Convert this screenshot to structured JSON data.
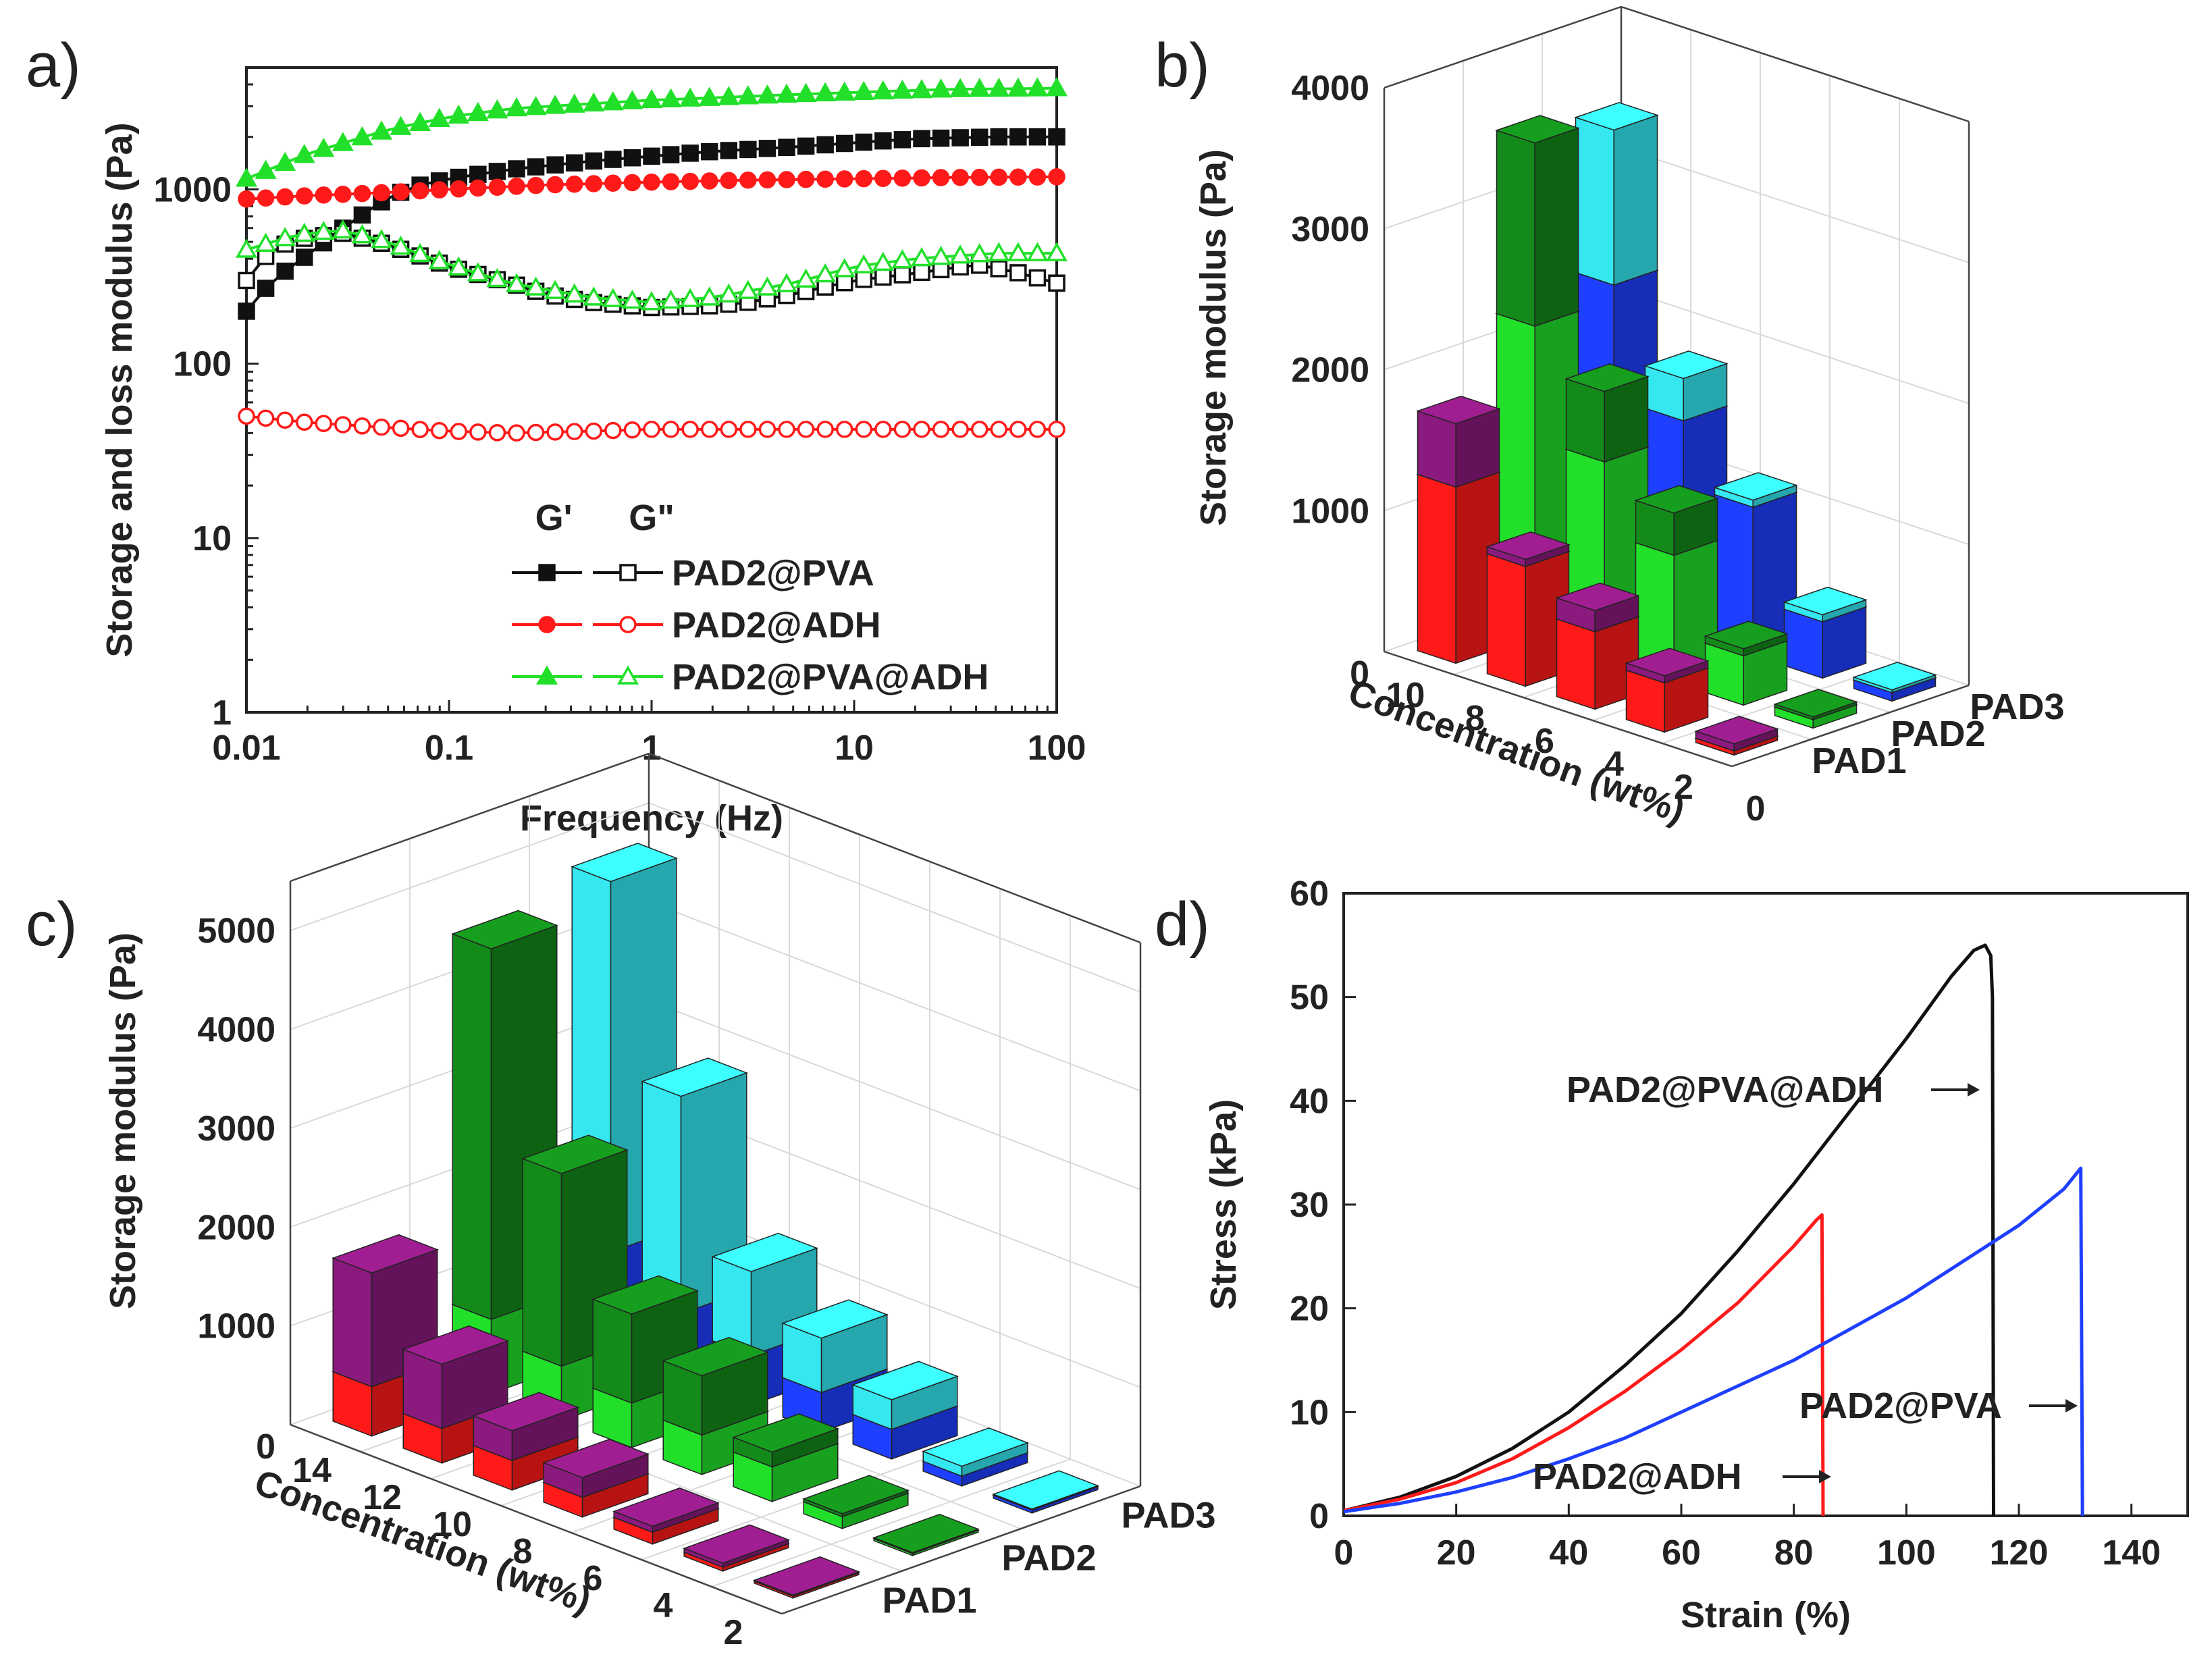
{
  "panels": {
    "a": {
      "label": "a)"
    },
    "b": {
      "label": "b)"
    },
    "c": {
      "label": "c)"
    },
    "d": {
      "label": "d)"
    }
  },
  "colors": {
    "black": "#111111",
    "red": "#ff1a1a",
    "green": "#22e02a",
    "dark_green": "#138a1a",
    "blue": "#1f3fff",
    "cyan": "#35e8f0",
    "purple": "#8b1a7e",
    "grid": "#cfcfcf"
  },
  "chart_data": [
    {
      "id": "a",
      "type": "line",
      "xscale": "log",
      "yscale": "log",
      "xlabel": "Frequency (Hz)",
      "ylabel": "Storage and loss modulus (Pa)",
      "xlim": [
        0.01,
        100
      ],
      "ylim": [
        1,
        5000
      ],
      "xticks": [
        {
          "v": 0.01,
          "t": "0.01"
        },
        {
          "v": 0.1,
          "t": "0.1"
        },
        {
          "v": 1,
          "t": "1"
        },
        {
          "v": 10,
          "t": "10"
        },
        {
          "v": 100,
          "t": "100"
        }
      ],
      "yticks": [
        {
          "v": 1,
          "t": "1"
        },
        {
          "v": 10,
          "t": "10"
        },
        {
          "v": 100,
          "t": "100"
        },
        {
          "v": 1000,
          "t": "1000"
        }
      ],
      "legend_header": [
        "G'",
        "G\""
      ],
      "series": [
        {
          "name": "PAD2@PVA",
          "kind": "G'",
          "color": "#111111",
          "marker": "square",
          "filled": true,
          "points": [
            [
              0.01,
              200
            ],
            [
              0.012,
              260
            ],
            [
              0.015,
              330
            ],
            [
              0.02,
              420
            ],
            [
              0.03,
              600
            ],
            [
              0.05,
              900
            ],
            [
              0.07,
              1050
            ],
            [
              0.1,
              1150
            ],
            [
              0.2,
              1300
            ],
            [
              0.5,
              1450
            ],
            [
              1,
              1550
            ],
            [
              2,
              1650
            ],
            [
              5,
              1750
            ],
            [
              10,
              1850
            ],
            [
              20,
              1950
            ],
            [
              50,
              2000
            ],
            [
              100,
              2000
            ]
          ]
        },
        {
          "name": "PAD2@PVA",
          "kind": "G\"",
          "color": "#111111",
          "marker": "square",
          "filled": false,
          "points": [
            [
              0.01,
              300
            ],
            [
              0.012,
              400
            ],
            [
              0.015,
              480
            ],
            [
              0.02,
              530
            ],
            [
              0.03,
              560
            ],
            [
              0.05,
              480
            ],
            [
              0.07,
              420
            ],
            [
              0.1,
              360
            ],
            [
              0.2,
              290
            ],
            [
              0.3,
              250
            ],
            [
              0.5,
              225
            ],
            [
              1,
              210
            ],
            [
              2,
              215
            ],
            [
              3,
              225
            ],
            [
              5,
              250
            ],
            [
              10,
              300
            ],
            [
              20,
              330
            ],
            [
              40,
              370
            ],
            [
              60,
              340
            ],
            [
              100,
              290
            ]
          ]
        },
        {
          "name": "PAD2@ADH",
          "kind": "G'",
          "color": "#ff1a1a",
          "marker": "circle",
          "filled": true,
          "points": [
            [
              0.01,
              880
            ],
            [
              0.02,
              920
            ],
            [
              0.05,
              960
            ],
            [
              0.1,
              1000
            ],
            [
              0.3,
              1060
            ],
            [
              1,
              1100
            ],
            [
              3,
              1130
            ],
            [
              10,
              1150
            ],
            [
              30,
              1170
            ],
            [
              100,
              1180
            ]
          ]
        },
        {
          "name": "PAD2@ADH",
          "kind": "G\"",
          "color": "#ff1a1a",
          "marker": "circle",
          "filled": false,
          "points": [
            [
              0.01,
              50
            ],
            [
              0.02,
              46
            ],
            [
              0.05,
              43
            ],
            [
              0.1,
              41
            ],
            [
              0.2,
              40
            ],
            [
              0.5,
              41
            ],
            [
              1,
              42
            ],
            [
              3,
              42
            ],
            [
              10,
              42
            ],
            [
              30,
              42
            ],
            [
              100,
              42
            ]
          ]
        },
        {
          "name": "PAD2@PVA@ADH",
          "kind": "G'",
          "color": "#22e02a",
          "marker": "triangle",
          "filled": true,
          "points": [
            [
              0.01,
              1150
            ],
            [
              0.02,
              1600
            ],
            [
              0.05,
              2200
            ],
            [
              0.1,
              2600
            ],
            [
              0.2,
              2900
            ],
            [
              0.5,
              3100
            ],
            [
              1,
              3250
            ],
            [
              2,
              3350
            ],
            [
              5,
              3500
            ],
            [
              10,
              3600
            ],
            [
              30,
              3750
            ],
            [
              100,
              3800
            ]
          ]
        },
        {
          "name": "PAD2@PVA@ADH",
          "kind": "G\"",
          "color": "#22e02a",
          "marker": "triangle",
          "filled": false,
          "points": [
            [
              0.01,
              450
            ],
            [
              0.015,
              520
            ],
            [
              0.02,
              560
            ],
            [
              0.03,
              580
            ],
            [
              0.05,
              500
            ],
            [
              0.07,
              430
            ],
            [
              0.1,
              370
            ],
            [
              0.2,
              290
            ],
            [
              0.5,
              240
            ],
            [
              1,
              225
            ],
            [
              2,
              240
            ],
            [
              5,
              290
            ],
            [
              10,
              360
            ],
            [
              20,
              400
            ],
            [
              50,
              430
            ],
            [
              100,
              430
            ]
          ]
        }
      ]
    },
    {
      "id": "b",
      "type": "bar3d",
      "zlabel": "Storage modulus (Pa)",
      "xlabel": "Concentration (wt%)",
      "zmax": 4000,
      "zticks": [
        {
          "v": 1000,
          "t": "1000"
        },
        {
          "v": 2000,
          "t": "2000"
        },
        {
          "v": 3000,
          "t": "3000"
        },
        {
          "v": 4000,
          "t": "4000"
        }
      ],
      "xticks": [
        {
          "v": 10,
          "t": "10"
        },
        {
          "v": 8,
          "t": "8"
        },
        {
          "v": 6,
          "t": "6"
        },
        {
          "v": 4,
          "t": "4"
        },
        {
          "v": 2,
          "t": "2"
        }
      ],
      "zero_labels": [
        "0",
        "0"
      ],
      "rows": [
        "PAD1",
        "PAD2",
        "PAD3"
      ],
      "concentrations": [
        10,
        8,
        6,
        4,
        2
      ],
      "series": [
        {
          "name": "PAD1",
          "color_low": "#ff1a1a",
          "color_high": "#8b1a7e",
          "low": [
            1250,
            850,
            550,
            350,
            30
          ],
          "total": [
            1700,
            900,
            700,
            400,
            80
          ]
        },
        {
          "name": "PAD2",
          "color_low": "#22e02a",
          "color_high": "#138a1a",
          "low": [
            2200,
            1400,
            900,
            350,
            60
          ],
          "total": [
            3500,
            1900,
            1200,
            400,
            80
          ]
        },
        {
          "name": "PAD3",
          "color_low": "#1f3fff",
          "color_high": "#35e8f0",
          "low": [
            2300,
            1500,
            1050,
            400,
            60
          ],
          "total": [
            3400,
            1800,
            1100,
            450,
            80
          ]
        }
      ]
    },
    {
      "id": "c",
      "type": "bar3d",
      "zlabel": "Storage modulus (Pa)",
      "xlabel": "Concentration (wt%)",
      "zmax": 5500,
      "zticks": [
        {
          "v": 1000,
          "t": "1000"
        },
        {
          "v": 2000,
          "t": "2000"
        },
        {
          "v": 3000,
          "t": "3000"
        },
        {
          "v": 4000,
          "t": "4000"
        },
        {
          "v": 5000,
          "t": "5000"
        }
      ],
      "xticks": [
        {
          "v": 14,
          "t": "14"
        },
        {
          "v": 12,
          "t": "12"
        },
        {
          "v": 10,
          "t": "10"
        },
        {
          "v": 8,
          "t": "8"
        },
        {
          "v": 6,
          "t": "6"
        },
        {
          "v": 4,
          "t": "4"
        },
        {
          "v": 2,
          "t": "2"
        }
      ],
      "zero_labels": [
        "0"
      ],
      "rows": [
        "PAD1",
        "PAD2",
        "PAD3"
      ],
      "concentrations": [
        14,
        12,
        10,
        8,
        6,
        4,
        2
      ],
      "series": [
        {
          "name": "PAD1",
          "color_low": "#ff1a1a",
          "color_high": "#8b1a7e",
          "low": [
            500,
            350,
            300,
            200,
            120,
            40,
            20
          ],
          "total": [
            1650,
            1000,
            600,
            400,
            180,
            80,
            30
          ]
        },
        {
          "name": "PAD2",
          "color_low": "#22e02a",
          "color_high": "#138a1a",
          "low": [
            750,
            550,
            450,
            400,
            350,
            120,
            20
          ],
          "total": [
            4500,
            2500,
            1350,
            1000,
            500,
            150,
            30
          ]
        },
        {
          "name": "PAD3",
          "color_low": "#1f3fff",
          "color_high": "#35e8f0",
          "low": [
            1000,
            650,
            500,
            400,
            300,
            100,
            30
          ],
          "total": [
            4750,
            2850,
            1350,
            950,
            600,
            200,
            40
          ]
        }
      ]
    },
    {
      "id": "d",
      "type": "line",
      "xlabel": "Strain (%)",
      "ylabel": "Stress (kPa)",
      "xlim": [
        0,
        150
      ],
      "ylim": [
        0,
        60
      ],
      "xticks": [
        {
          "v": 0,
          "t": "0"
        },
        {
          "v": 20,
          "t": "20"
        },
        {
          "v": 40,
          "t": "40"
        },
        {
          "v": 60,
          "t": "60"
        },
        {
          "v": 80,
          "t": "80"
        },
        {
          "v": 100,
          "t": "100"
        },
        {
          "v": 120,
          "t": "120"
        },
        {
          "v": 140,
          "t": "140"
        }
      ],
      "yticks": [
        {
          "v": 0,
          "t": "0"
        },
        {
          "v": 10,
          "t": "10"
        },
        {
          "v": 20,
          "t": "20"
        },
        {
          "v": 30,
          "t": "30"
        },
        {
          "v": 40,
          "t": "40"
        },
        {
          "v": 50,
          "t": "50"
        },
        {
          "v": 60,
          "t": "60"
        }
      ],
      "series": [
        {
          "name": "PAD2@PVA@ADH",
          "color": "#111111",
          "label": "PAD2@PVA@ADH",
          "points": [
            [
              0,
              0.5
            ],
            [
              10,
              1.8
            ],
            [
              20,
              3.8
            ],
            [
              30,
              6.5
            ],
            [
              40,
              10
            ],
            [
              50,
              14.5
            ],
            [
              60,
              19.5
            ],
            [
              70,
              25.5
            ],
            [
              80,
              32
            ],
            [
              90,
              39
            ],
            [
              100,
              46
            ],
            [
              108,
              52
            ],
            [
              112,
              54.5
            ],
            [
              114,
              55
            ],
            [
              115,
              54
            ],
            [
              115.3,
              50
            ],
            [
              115.5,
              0
            ]
          ]
        },
        {
          "name": "PAD2@ADH",
          "color": "#ff1a1a",
          "label": "PAD2@ADH",
          "points": [
            [
              0,
              0.5
            ],
            [
              10,
              1.6
            ],
            [
              20,
              3.2
            ],
            [
              30,
              5.5
            ],
            [
              40,
              8.5
            ],
            [
              50,
              12
            ],
            [
              60,
              16
            ],
            [
              70,
              20.5
            ],
            [
              80,
              26
            ],
            [
              84,
              28.5
            ],
            [
              85,
              29
            ],
            [
              85.2,
              0
            ]
          ]
        },
        {
          "name": "PAD2@PVA",
          "color": "#1f3fff",
          "label": "PAD2@PVA",
          "points": [
            [
              0,
              0.4
            ],
            [
              10,
              1.2
            ],
            [
              20,
              2.3
            ],
            [
              30,
              3.7
            ],
            [
              40,
              5.5
            ],
            [
              50,
              7.5
            ],
            [
              60,
              10
            ],
            [
              70,
              12.5
            ],
            [
              80,
              15
            ],
            [
              90,
              18
            ],
            [
              100,
              21
            ],
            [
              110,
              24.5
            ],
            [
              120,
              28
            ],
            [
              128,
              31.5
            ],
            [
              131,
              33.5
            ],
            [
              131.3,
              0
            ]
          ]
        }
      ]
    }
  ]
}
